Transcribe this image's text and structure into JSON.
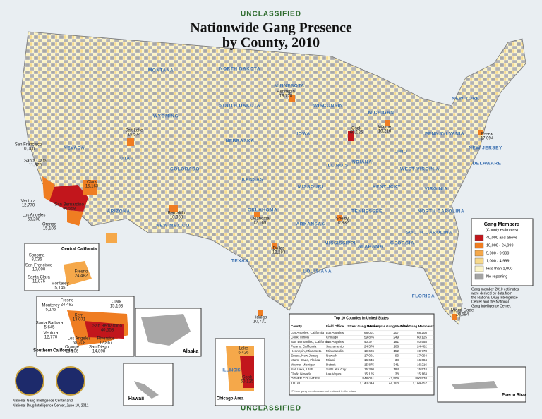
{
  "header": {
    "classification": "UNCLASSIFIED",
    "title": [
      "Nationwide Gang Presence",
      "by County, 2010"
    ]
  },
  "footer_classification": "UNCLASSIFIED",
  "footer": [
    "National Gang Intelligence Center and",
    "National Drug Intelligence Center, June 10, 2011"
  ],
  "legend": {
    "title": "Gang Members",
    "subtitle": "(County estimates)",
    "items": [
      {
        "label": "40,000 and above",
        "color": "#c2161c"
      },
      {
        "label": "10,000 - 24,999",
        "color": "#ef7d22"
      },
      {
        "label": "5,000 - 9,999",
        "color": "#f5a84a"
      },
      {
        "label": "1,000 - 4,999",
        "color": "#f7d98c"
      },
      {
        "label": "less than 1,000",
        "color": "#fbf4c8"
      },
      {
        "label": "No reporting",
        "color": "#a3a3a3"
      }
    ],
    "note": [
      "Gang member 2010 estimates",
      "were derived by data from",
      "the National Drug Intelligence",
      "Center and the National",
      "Gang Intelligence Center."
    ]
  },
  "state_labels": [
    "MONTANA",
    "NORTH DAKOTA",
    "MINNESOTA",
    "SOUTH DAKOTA",
    "WYOMING",
    "NEVADA",
    "UTAH",
    "COLORADO",
    "NEBRASKA",
    "KANSAS",
    "IOWA",
    "ILLINOIS",
    "MISSOURI",
    "ARIZONA",
    "NEW MEXICO",
    "TEXAS",
    "OKLAHOMA",
    "ARKANSAS",
    "LOUISIANA",
    "MISSISSIPPI",
    "ALABAMA",
    "GEORGIA",
    "FLORIDA",
    "TENNESSEE",
    "KENTUCKY",
    "INDIANA",
    "OHIO",
    "MICHIGAN",
    "WISCONSIN",
    "PENNSYLVANIA",
    "NEW YORK",
    "VIRGINIA",
    "WEST VIRGINIA",
    "NORTH CAROLINA",
    "SOUTH CAROLINA",
    "NEW JERSEY",
    "DELAWARE"
  ],
  "county_labels": [
    {
      "name": "Hennepin",
      "value": "19,778"
    },
    {
      "name": "Cook",
      "value": "60,125"
    },
    {
      "name": "Wayne",
      "value": "16,216"
    },
    {
      "name": "Essex",
      "value": "17,094"
    },
    {
      "name": "Salt Lake",
      "value": "15,574"
    },
    {
      "name": "Clark",
      "value": "15,163"
    },
    {
      "name": "San Bernardino",
      "value": "40,558"
    },
    {
      "name": "Los Angeles",
      "value": "68,208"
    },
    {
      "name": "San Francisco",
      "value": "10,000"
    },
    {
      "name": "Santa Clara",
      "value": "11,876"
    },
    {
      "name": "Ventura",
      "value": "12,770"
    },
    {
      "name": "Orange",
      "value": "15,106"
    },
    {
      "name": "Bernalillo",
      "value": "10,938"
    },
    {
      "name": "Oklahoma",
      "value": "12,169"
    },
    {
      "name": "Dallas",
      "value": "12,283"
    },
    {
      "name": "Shelby",
      "value": "10,832"
    },
    {
      "name": "Miami-Dade",
      "value": "16,684"
    },
    {
      "name": "Hidalgo",
      "value": "10,731"
    }
  ],
  "insets": {
    "central_california": {
      "title": "Central California",
      "labels": [
        {
          "name": "Sonoma",
          "value": "8,036"
        },
        {
          "name": "San Francisco",
          "value": "10,000"
        },
        {
          "name": "Santa Clara",
          "value": "11,876"
        },
        {
          "name": "Monterey",
          "value": "5,145"
        },
        {
          "name": "Fresno",
          "value": "24,482"
        }
      ]
    },
    "southern_california": {
      "title": "Southern California",
      "labels": [
        {
          "name": "Fresno",
          "value": "24,482"
        },
        {
          "name": "Monterey",
          "value": "5,145"
        },
        {
          "name": "Clark",
          "value": "15,163"
        },
        {
          "name": "Kern",
          "value": "13,071"
        },
        {
          "name": "Santa Barbara",
          "value": "5,645"
        },
        {
          "name": "San Bernardino",
          "value": "40,558"
        },
        {
          "name": "Ventura",
          "value": "12,770"
        },
        {
          "name": "Los Angeles",
          "value": "68,208"
        },
        {
          "name": "Riverside",
          "value": "12,867"
        },
        {
          "name": "Orange",
          "value": "15,106"
        },
        {
          "name": "San Diego",
          "value": "14,898"
        }
      ]
    },
    "alaska": "Alaska",
    "hawaii": "Hawaii",
    "puerto_rico": "Puerto Rico",
    "chicago": {
      "title": "Chicago Area",
      "state": "ILLINOIS",
      "labels": [
        {
          "name": "Lake",
          "value": "6,426"
        },
        {
          "name": "Cook",
          "value": "60,125"
        }
      ]
    }
  },
  "table": {
    "title": "Top 10 Counties in United States",
    "columns": [
      "County",
      "Field Office",
      "Street Gang Members",
      "Motorcycle Gang Members",
      "Total Gang Members*"
    ],
    "rows": [
      [
        "Los Angeles, California",
        "Los Angeles",
        "68,001",
        "207",
        "68,208"
      ],
      [
        "Cook, Illinois",
        "Chicago",
        "59,876",
        "249",
        "60,125"
      ],
      [
        "San Bernardino, California",
        "Los Angeles",
        "40,377",
        "181",
        "40,558"
      ],
      [
        "Fresno, California",
        "Sacramento",
        "24,376",
        "106",
        "24,482"
      ],
      [
        "Hennepin, Minnesota",
        "Minneapolis",
        "19,626",
        "152",
        "19,778"
      ],
      [
        "Essex, New Jersey",
        "Newark",
        "17,001",
        "93",
        "17,094"
      ],
      [
        "Miami-Dade, Florida",
        "Miami",
        "16,646",
        "38",
        "16,684"
      ],
      [
        "Wayne, Michigan",
        "Detroit",
        "15,875",
        "341",
        "16,216"
      ],
      [
        "Salt Lake, Utah",
        "Salt Lake City",
        "15,380",
        "194",
        "15,574"
      ],
      [
        "Clark, Nevada",
        "Las Vegas",
        "15,125",
        "38",
        "15,163"
      ],
      [
        "OTHER COUNTIES",
        "",
        "848,061",
        "42,509",
        "890,570"
      ],
      [
        "TOTAL",
        "",
        "1,140,344",
        "44,108",
        "1,184,452"
      ]
    ],
    "footnote": "*Prison gang members are not included in the totals"
  }
}
